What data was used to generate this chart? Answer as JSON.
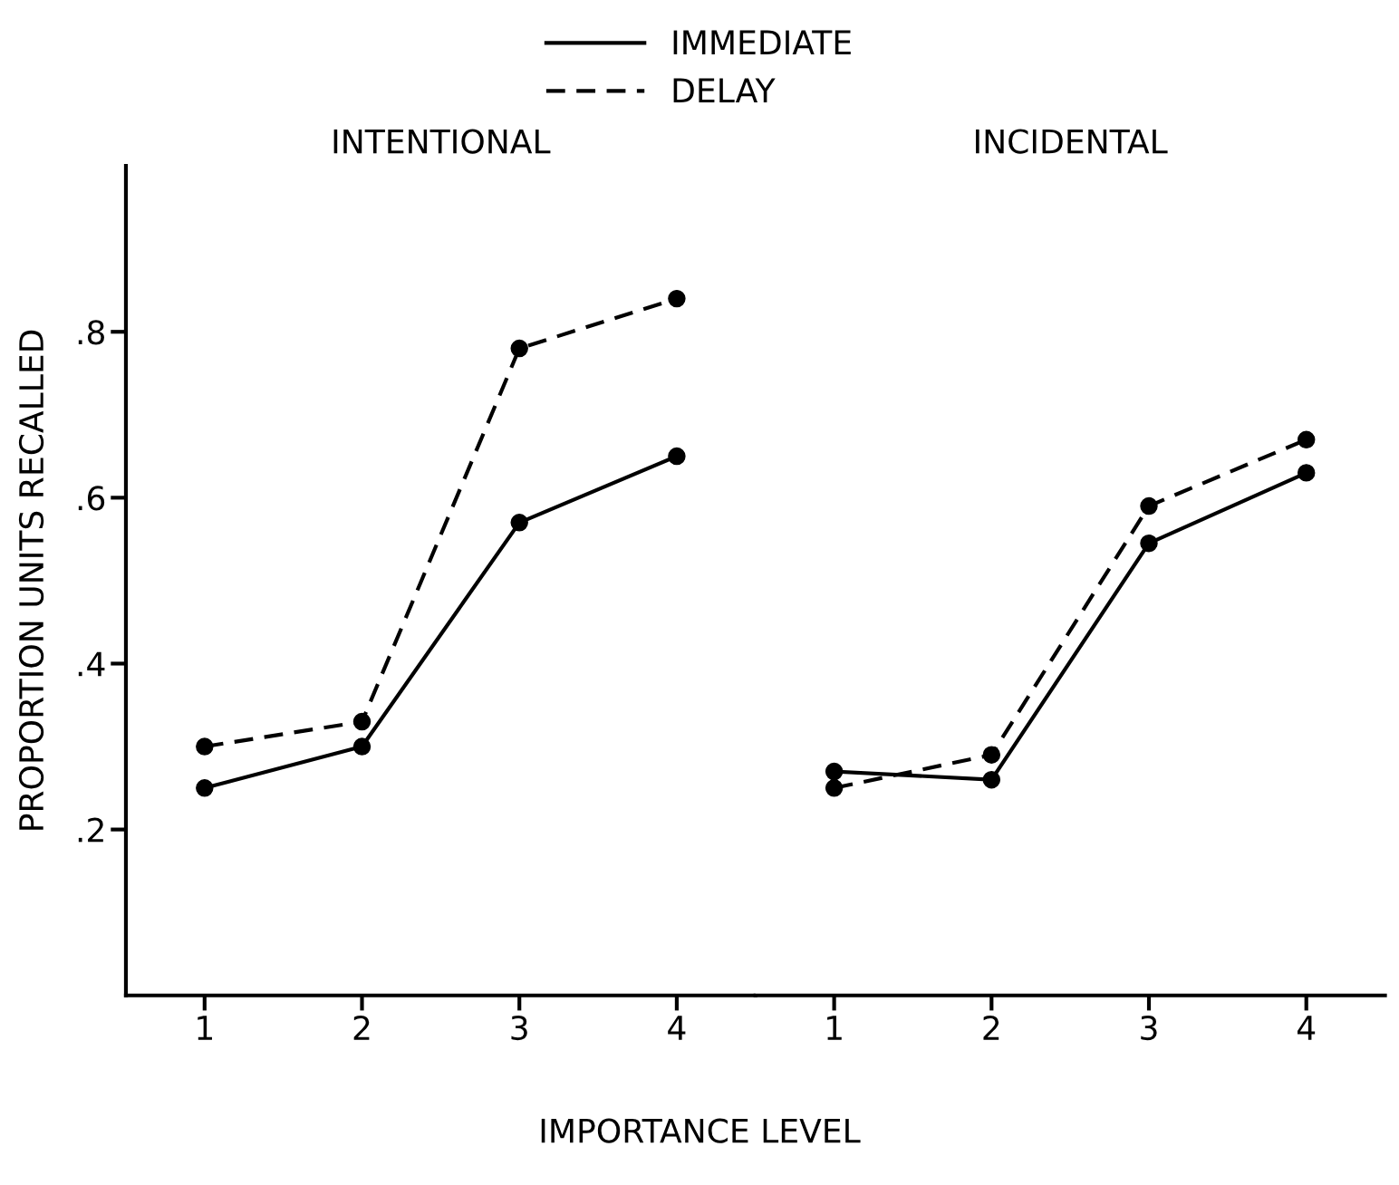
{
  "chart_data": [
    {
      "type": "line",
      "title": "INTENTIONAL",
      "ylabel": "PROPORTION UNITS RECALLED",
      "xlabel": "IMPORTANCE LEVEL",
      "categories": [
        "1",
        "2",
        "3",
        "4"
      ],
      "ylim": [
        0,
        1.0
      ],
      "yticks": [
        {
          "value": 0.2,
          "label": ".2"
        },
        {
          "value": 0.4,
          "label": ".4"
        },
        {
          "value": 0.6,
          "label": ".6"
        },
        {
          "value": 0.8,
          "label": ".8"
        }
      ],
      "marker": "circle",
      "legend": "top",
      "grid": false,
      "series": [
        {
          "name": "IMMEDIATE",
          "color": "#000000",
          "line_style": "solid",
          "values": [
            0.25,
            0.3,
            0.57,
            0.65
          ]
        },
        {
          "name": "DELAY",
          "color": "#000000",
          "line_style": "dashed",
          "values": [
            0.3,
            0.33,
            0.78,
            0.84
          ]
        }
      ]
    },
    {
      "type": "line",
      "title": "INCIDENTAL",
      "categories": [
        "1",
        "2",
        "3",
        "4"
      ],
      "ylim": [
        0,
        1.0
      ],
      "tick_labels": "x",
      "marker": "circle",
      "grid": false,
      "series": [
        {
          "color": "#000000",
          "line_style": "solid",
          "values": [
            0.27,
            0.26,
            0.545,
            0.63
          ]
        },
        {
          "color": "#000000",
          "line_style": "dashed",
          "values": [
            0.25,
            0.29,
            0.59,
            0.67
          ]
        }
      ]
    }
  ]
}
